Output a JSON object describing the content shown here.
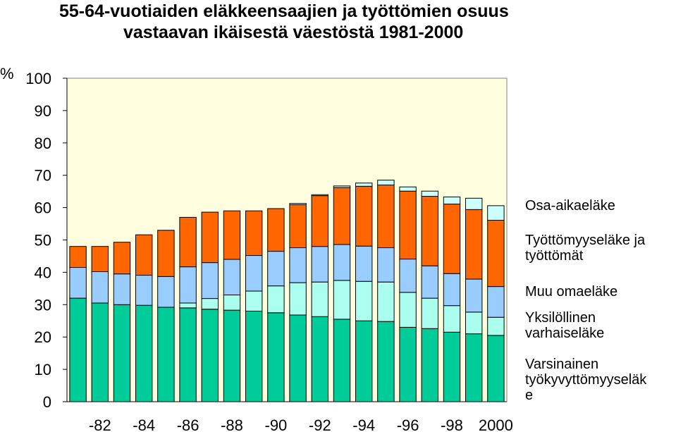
{
  "chart_data": {
    "type": "bar",
    "stacked": true,
    "title": "55-64-vuotiaiden eläkkeensaajien ja työttömien osuus",
    "subtitle": "vastaavan ikäisestä väestöstä 1981-2000",
    "ylabel": "%",
    "ylim": [
      0,
      100
    ],
    "yticks": [
      "0",
      "10",
      "20",
      "30",
      "40",
      "50",
      "60",
      "70",
      "80",
      "90",
      "100"
    ],
    "xtick_labels": [
      "-82",
      "-84",
      "-86",
      "-88",
      "-90",
      "-92",
      "-94",
      "-96",
      "-98",
      "2000"
    ],
    "categories": [
      "1981",
      "1982",
      "1983",
      "1984",
      "1985",
      "1986",
      "1987",
      "1988",
      "1989",
      "1990",
      "1991",
      "1992",
      "1993",
      "1994",
      "1995",
      "1996",
      "1997",
      "1998",
      "1999",
      "2000"
    ],
    "grid": false,
    "legend_position": "right",
    "series": [
      {
        "name": "Varsinainen työkyvyttömyyseläk e",
        "color": "#00CC99",
        "values": [
          32.0,
          30.5,
          30.0,
          29.8,
          29.2,
          29.0,
          28.6,
          28.3,
          28.0,
          27.5,
          26.8,
          26.3,
          25.5,
          25.0,
          24.8,
          23.0,
          22.6,
          21.5,
          21.0,
          20.5
        ]
      },
      {
        "name": "Yksilöllinen varhaiseläke",
        "color": "#AAFFEE",
        "values": [
          0,
          0,
          0,
          0,
          0,
          1.5,
          3.3,
          4.7,
          6.2,
          8.3,
          10.0,
          10.7,
          12.0,
          12.2,
          12.2,
          10.8,
          9.4,
          8.2,
          6.7,
          5.6
        ]
      },
      {
        "name": "Muu omaeläke",
        "color": "#99CCFF",
        "values": [
          9.5,
          9.7,
          9.5,
          9.3,
          9.5,
          11.2,
          11.1,
          11.0,
          11.0,
          10.7,
          10.8,
          11.0,
          11.1,
          10.9,
          10.6,
          10.3,
          10.0,
          9.9,
          10.2,
          9.5
        ]
      },
      {
        "name": "Työttömyyseläke ja työttömät",
        "color": "#FF6600",
        "values": [
          6.5,
          7.8,
          9.8,
          12.5,
          14.3,
          15.3,
          15.6,
          15.0,
          13.8,
          13.2,
          13.3,
          15.7,
          17.6,
          18.5,
          19.4,
          21.0,
          21.5,
          21.5,
          21.5,
          20.5
        ]
      },
      {
        "name": "Osa-aikaeläke",
        "color": "#CCFFFF",
        "values": [
          0,
          0,
          0,
          0,
          0,
          0,
          0,
          0,
          0,
          0,
          0.4,
          0.3,
          0.5,
          1.0,
          1.5,
          1.3,
          1.6,
          2.2,
          3.5,
          4.5
        ]
      }
    ]
  }
}
